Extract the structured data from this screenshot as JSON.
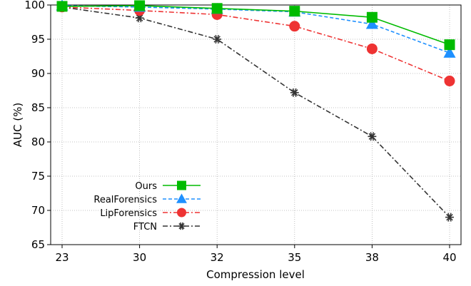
{
  "chart_data": {
    "type": "line",
    "xlabel": "Compression level",
    "ylabel": "AUC (%)",
    "categories": [
      "23",
      "30",
      "32",
      "35",
      "38",
      "40"
    ],
    "ylim": [
      65,
      100
    ],
    "yticks": [
      65,
      70,
      75,
      80,
      85,
      90,
      95,
      100
    ],
    "grid": true,
    "legend_position": "bottom-left",
    "series": [
      {
        "name": "Ours",
        "values": [
          99.8,
          99.9,
          99.5,
          99.1,
          98.2,
          94.2
        ],
        "color": "#00bb00",
        "marker": "square",
        "dash": "solid"
      },
      {
        "name": "RealForensics",
        "values": [
          99.9,
          99.7,
          99.4,
          99.0,
          97.2,
          93.0
        ],
        "color": "#1e90ff",
        "marker": "triangle",
        "dash": "dashed"
      },
      {
        "name": "LipForensics",
        "values": [
          99.7,
          99.2,
          98.6,
          96.9,
          93.6,
          88.9
        ],
        "color": "#ee3333",
        "marker": "circle",
        "dash": "dashdot"
      },
      {
        "name": "FTCN",
        "values": [
          99.7,
          98.1,
          95.0,
          87.2,
          80.8,
          69.0
        ],
        "color": "#333333",
        "marker": "asterisk",
        "dash": "dashdot"
      }
    ]
  }
}
